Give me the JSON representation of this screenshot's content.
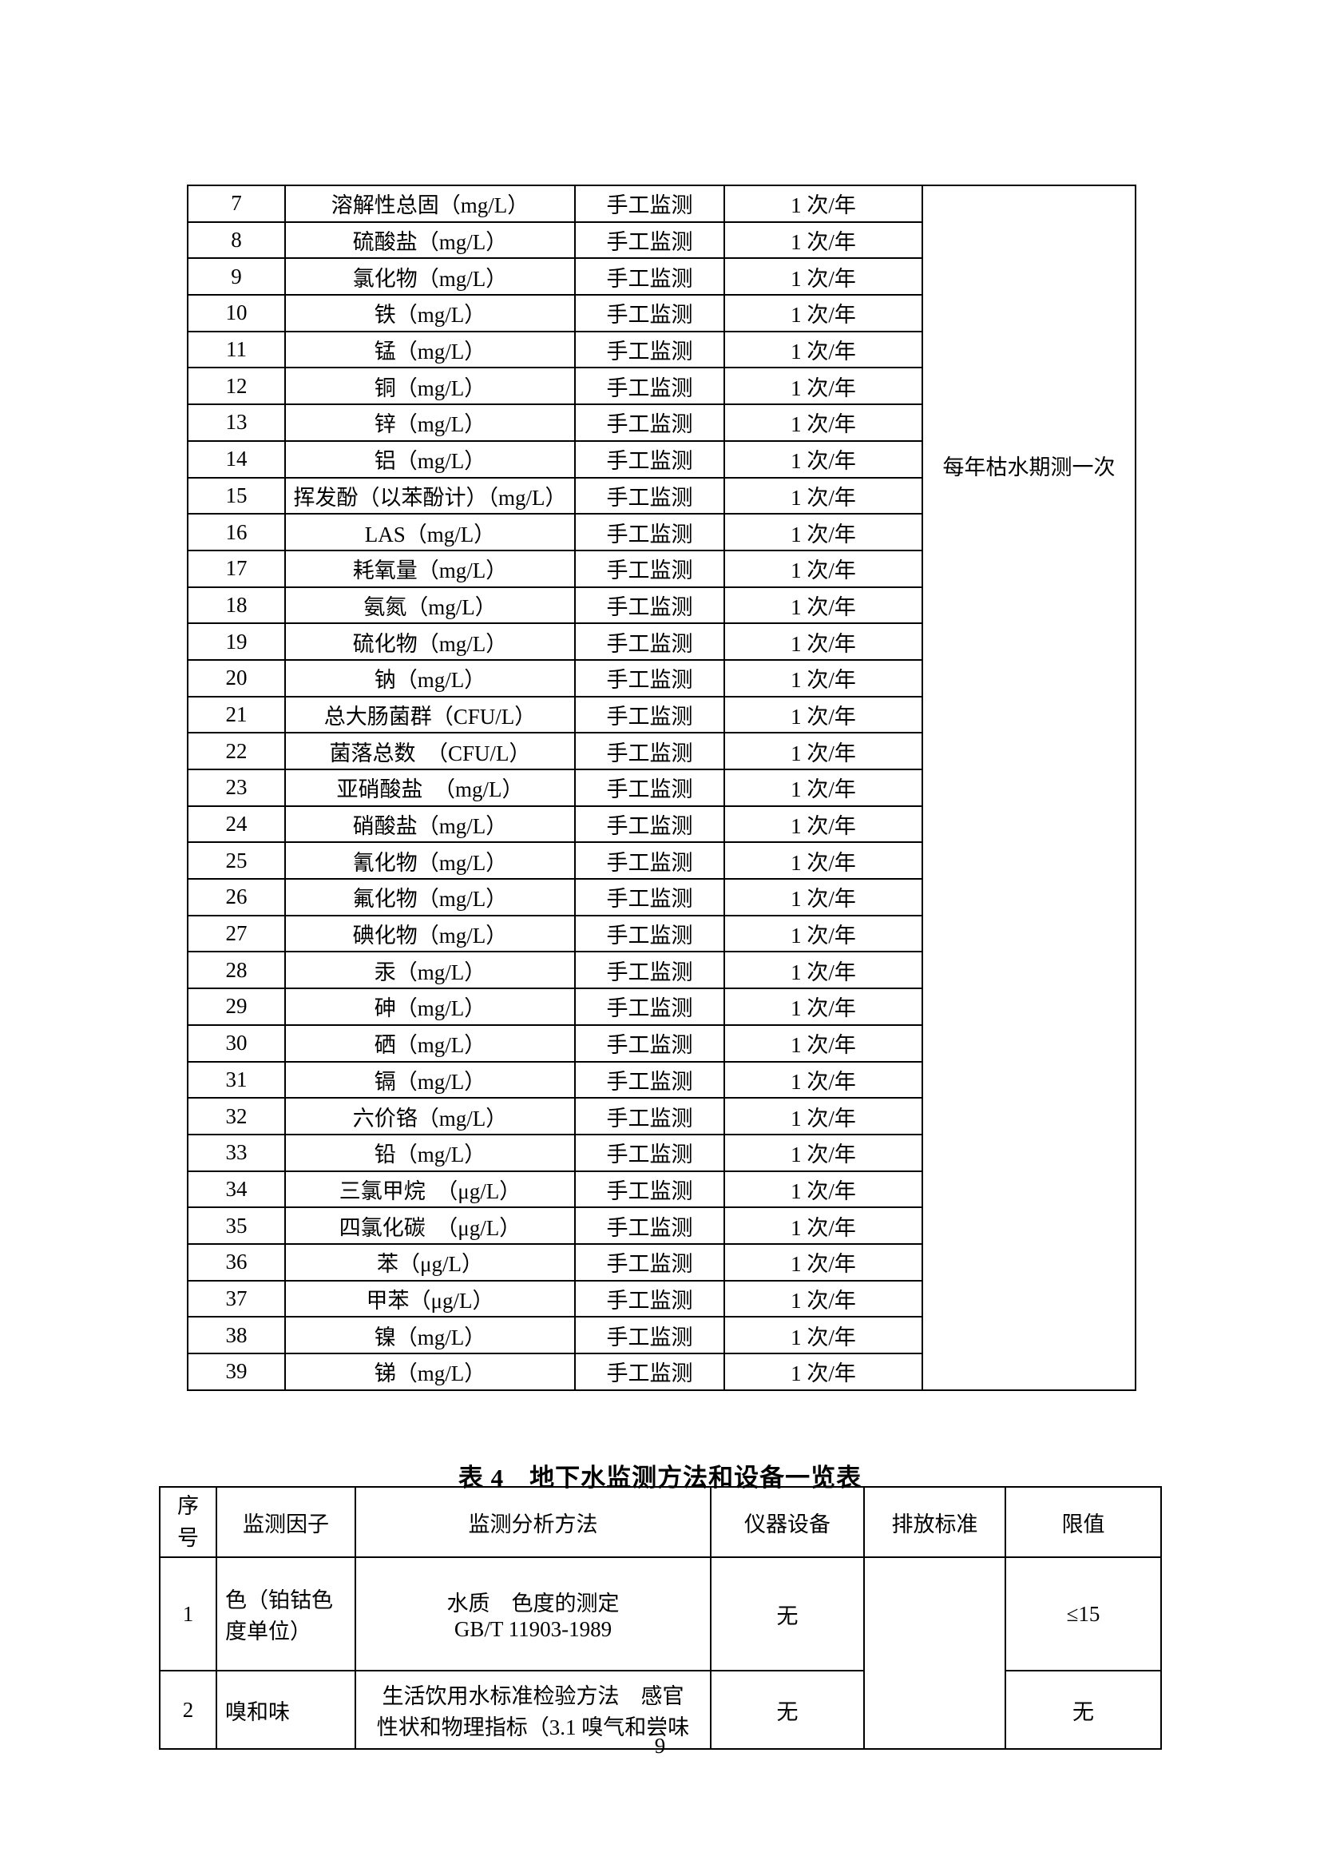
{
  "table1": {
    "note": "每年枯水期测一次",
    "rows": [
      [
        "7",
        "溶解性总固（mg/L）",
        "手工监测",
        "1 次/年"
      ],
      [
        "8",
        "硫酸盐（mg/L）",
        "手工监测",
        "1 次/年"
      ],
      [
        "9",
        "氯化物（mg/L）",
        "手工监测",
        "1 次/年"
      ],
      [
        "10",
        "铁（mg/L）",
        "手工监测",
        "1 次/年"
      ],
      [
        "11",
        "锰（mg/L）",
        "手工监测",
        "1 次/年"
      ],
      [
        "12",
        "铜（mg/L）",
        "手工监测",
        "1 次/年"
      ],
      [
        "13",
        "锌（mg/L）",
        "手工监测",
        "1 次/年"
      ],
      [
        "14",
        "铝（mg/L）",
        "手工监测",
        "1 次/年"
      ],
      [
        "15",
        "挥发酚（以苯酚计）（mg/L）",
        "手工监测",
        "1 次/年"
      ],
      [
        "16",
        "LAS（mg/L）",
        "手工监测",
        "1 次/年"
      ],
      [
        "17",
        "耗氧量（mg/L）",
        "手工监测",
        "1 次/年"
      ],
      [
        "18",
        "氨氮（mg/L）",
        "手工监测",
        "1 次/年"
      ],
      [
        "19",
        "硫化物（mg/L）",
        "手工监测",
        "1 次/年"
      ],
      [
        "20",
        "钠（mg/L）",
        "手工监测",
        "1 次/年"
      ],
      [
        "21",
        "总大肠菌群（CFU/L）",
        "手工监测",
        "1 次/年"
      ],
      [
        "22",
        "菌落总数　（CFU/L）",
        "手工监测",
        "1 次/年"
      ],
      [
        "23",
        "亚硝酸盐　（mg/L）",
        "手工监测",
        "1 次/年"
      ],
      [
        "24",
        "硝酸盐（mg/L）",
        "手工监测",
        "1 次/年"
      ],
      [
        "25",
        "氰化物（mg/L）",
        "手工监测",
        "1 次/年"
      ],
      [
        "26",
        "氟化物（mg/L）",
        "手工监测",
        "1 次/年"
      ],
      [
        "27",
        "碘化物（mg/L）",
        "手工监测",
        "1 次/年"
      ],
      [
        "28",
        "汞（mg/L）",
        "手工监测",
        "1 次/年"
      ],
      [
        "29",
        "砷（mg/L）",
        "手工监测",
        "1 次/年"
      ],
      [
        "30",
        "硒（mg/L）",
        "手工监测",
        "1 次/年"
      ],
      [
        "31",
        "镉（mg/L）",
        "手工监测",
        "1 次/年"
      ],
      [
        "32",
        "六价铬（mg/L）",
        "手工监测",
        "1 次/年"
      ],
      [
        "33",
        "铅（mg/L）",
        "手工监测",
        "1 次/年"
      ],
      [
        "34",
        "三氯甲烷　（μg/L）",
        "手工监测",
        "1 次/年"
      ],
      [
        "35",
        "四氯化碳　（μg/L）",
        "手工监测",
        "1 次/年"
      ],
      [
        "36",
        "苯（μg/L）",
        "手工监测",
        "1 次/年"
      ],
      [
        "37",
        "甲苯（μg/L）",
        "手工监测",
        "1 次/年"
      ],
      [
        "38",
        "镍（mg/L）",
        "手工监测",
        "1 次/年"
      ],
      [
        "39",
        "锑（mg/L）",
        "手工监测",
        "1 次/年"
      ]
    ]
  },
  "table2": {
    "title": "表 4　地下水监测方法和设备一览表",
    "headers": {
      "no": "序号",
      "factor": "监测因子",
      "method": "监测分析方法",
      "instrument": "仪器设备",
      "standard": "排放标准",
      "limit": "限值"
    },
    "rows": [
      {
        "no": "1",
        "factor_lines": [
          "色（铂钴色",
          "度单位）"
        ],
        "method_lines": [
          "水质　色度的测定",
          "GB/T 11903-1989"
        ],
        "instrument": "无",
        "standard": "",
        "limit": "≤15"
      },
      {
        "no": "2",
        "factor_lines": [
          "嗅和味"
        ],
        "method_lines": [
          "生活饮用水标准检验方法　感官",
          "性状和物理指标（3.1 嗅气和尝味"
        ],
        "instrument": "无",
        "limit": "无"
      }
    ]
  },
  "page": {
    "number": "9"
  }
}
